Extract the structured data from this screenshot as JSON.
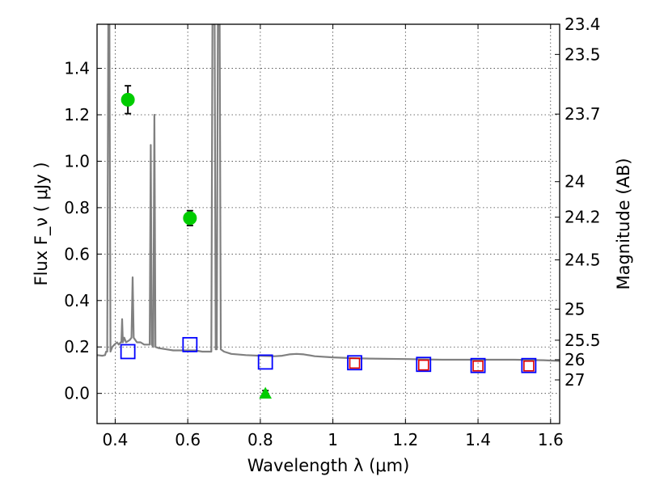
{
  "chart_data": {
    "type": "scatter",
    "xlabel": "Wavelength  λ (μm)",
    "ylabel": "Flux  F_ν  ( μJy )",
    "ylabel_right": "Magnitude (AB)",
    "xlim": [
      0.35,
      1.625
    ],
    "ylim": [
      -0.13,
      1.59
    ],
    "x_ticks": [
      0.4,
      0.6,
      0.8,
      1.0,
      1.2,
      1.4,
      1.6
    ],
    "x_tick_labels": [
      "0.4",
      "0.6",
      "0.8",
      "1",
      "1.2",
      "1.4",
      "1.6"
    ],
    "y_ticks": [
      0.0,
      0.2,
      0.4,
      0.6,
      0.8,
      1.0,
      1.2,
      1.4
    ],
    "y_tick_labels": [
      "0.0",
      "0.2",
      "0.4",
      "0.6",
      "0.8",
      "1.0",
      "1.2",
      "1.4"
    ],
    "right_ticks": [
      {
        "label": "23.4",
        "flux": 1.59
      },
      {
        "label": "23.5",
        "flux": 1.46
      },
      {
        "label": "23.7",
        "flux": 1.203
      },
      {
        "label": "24",
        "flux": 0.912
      },
      {
        "label": "24.2",
        "flux": 0.759
      },
      {
        "label": "24.5",
        "flux": 0.575
      },
      {
        "label": "25",
        "flux": 0.363
      },
      {
        "label": "25.5",
        "flux": 0.229
      },
      {
        "label": "26",
        "flux": 0.145
      },
      {
        "label": "27",
        "flux": 0.058
      }
    ],
    "grid": true,
    "series": [
      {
        "kind": "model-sed-line",
        "color": "#808080",
        "points": [
          [
            0.35,
            0.165
          ],
          [
            0.365,
            0.162
          ],
          [
            0.372,
            0.165
          ],
          [
            0.375,
            0.18
          ],
          [
            0.378,
            0.18
          ],
          [
            0.381,
            1.59
          ],
          [
            0.384,
            1.59
          ],
          [
            0.387,
            0.18
          ],
          [
            0.392,
            0.2
          ],
          [
            0.398,
            0.21
          ],
          [
            0.405,
            0.22
          ],
          [
            0.41,
            0.21
          ],
          [
            0.415,
            0.22
          ],
          [
            0.417,
            0.22
          ],
          [
            0.419,
            0.32
          ],
          [
            0.421,
            0.22
          ],
          [
            0.425,
            0.24
          ],
          [
            0.43,
            0.22
          ],
          [
            0.44,
            0.23
          ],
          [
            0.445,
            0.24
          ],
          [
            0.448,
            0.5
          ],
          [
            0.451,
            0.24
          ],
          [
            0.46,
            0.22
          ],
          [
            0.47,
            0.22
          ],
          [
            0.48,
            0.21
          ],
          [
            0.495,
            0.21
          ],
          [
            0.498,
            1.07
          ],
          [
            0.501,
            0.21
          ],
          [
            0.505,
            0.2
          ],
          [
            0.508,
            1.2
          ],
          [
            0.511,
            0.2
          ],
          [
            0.52,
            0.195
          ],
          [
            0.54,
            0.19
          ],
          [
            0.56,
            0.185
          ],
          [
            0.6,
            0.185
          ],
          [
            0.62,
            0.185
          ],
          [
            0.64,
            0.18
          ],
          [
            0.655,
            0.18
          ],
          [
            0.665,
            0.18
          ],
          [
            0.668,
            1.59
          ],
          [
            0.674,
            1.59
          ],
          [
            0.677,
            0.19
          ],
          [
            0.68,
            0.19
          ],
          [
            0.683,
            1.59
          ],
          [
            0.688,
            1.59
          ],
          [
            0.691,
            0.19
          ],
          [
            0.7,
            0.18
          ],
          [
            0.72,
            0.17
          ],
          [
            0.76,
            0.165
          ],
          [
            0.8,
            0.162
          ],
          [
            0.84,
            0.16
          ],
          [
            0.86,
            0.162
          ],
          [
            0.88,
            0.168
          ],
          [
            0.9,
            0.17
          ],
          [
            0.92,
            0.168
          ],
          [
            0.95,
            0.16
          ],
          [
            1.0,
            0.155
          ],
          [
            1.05,
            0.152
          ],
          [
            1.1,
            0.15
          ],
          [
            1.2,
            0.148
          ],
          [
            1.3,
            0.145
          ],
          [
            1.4,
            0.145
          ],
          [
            1.5,
            0.145
          ],
          [
            1.58,
            0.143
          ],
          [
            1.625,
            0.14
          ]
        ]
      },
      {
        "kind": "detections",
        "color": "#00cc00",
        "marker": "circle",
        "points": [
          {
            "x": 0.435,
            "y": 1.265,
            "err": 0.06
          },
          {
            "x": 0.606,
            "y": 0.755,
            "err": 0.032
          }
        ]
      },
      {
        "kind": "upper-limit",
        "color": "#00cc00",
        "marker": "triangle",
        "points": [
          {
            "x": 0.814,
            "y": 0.0,
            "err": 0.012
          }
        ]
      },
      {
        "kind": "model-photometry",
        "color": "#0000ff",
        "marker": "open-square",
        "points": [
          {
            "x": 0.435,
            "y": 0.18
          },
          {
            "x": 0.606,
            "y": 0.21
          },
          {
            "x": 0.814,
            "y": 0.135
          },
          {
            "x": 1.06,
            "y": 0.132
          },
          {
            "x": 1.25,
            "y": 0.125
          },
          {
            "x": 1.4,
            "y": 0.12
          },
          {
            "x": 1.54,
            "y": 0.12
          }
        ]
      },
      {
        "kind": "ir-photometry",
        "color": "#dd0000",
        "marker": "open-square",
        "points": [
          {
            "x": 1.06,
            "y": 0.13
          },
          {
            "x": 1.25,
            "y": 0.122
          },
          {
            "x": 1.4,
            "y": 0.118
          },
          {
            "x": 1.54,
            "y": 0.118
          }
        ]
      }
    ]
  }
}
